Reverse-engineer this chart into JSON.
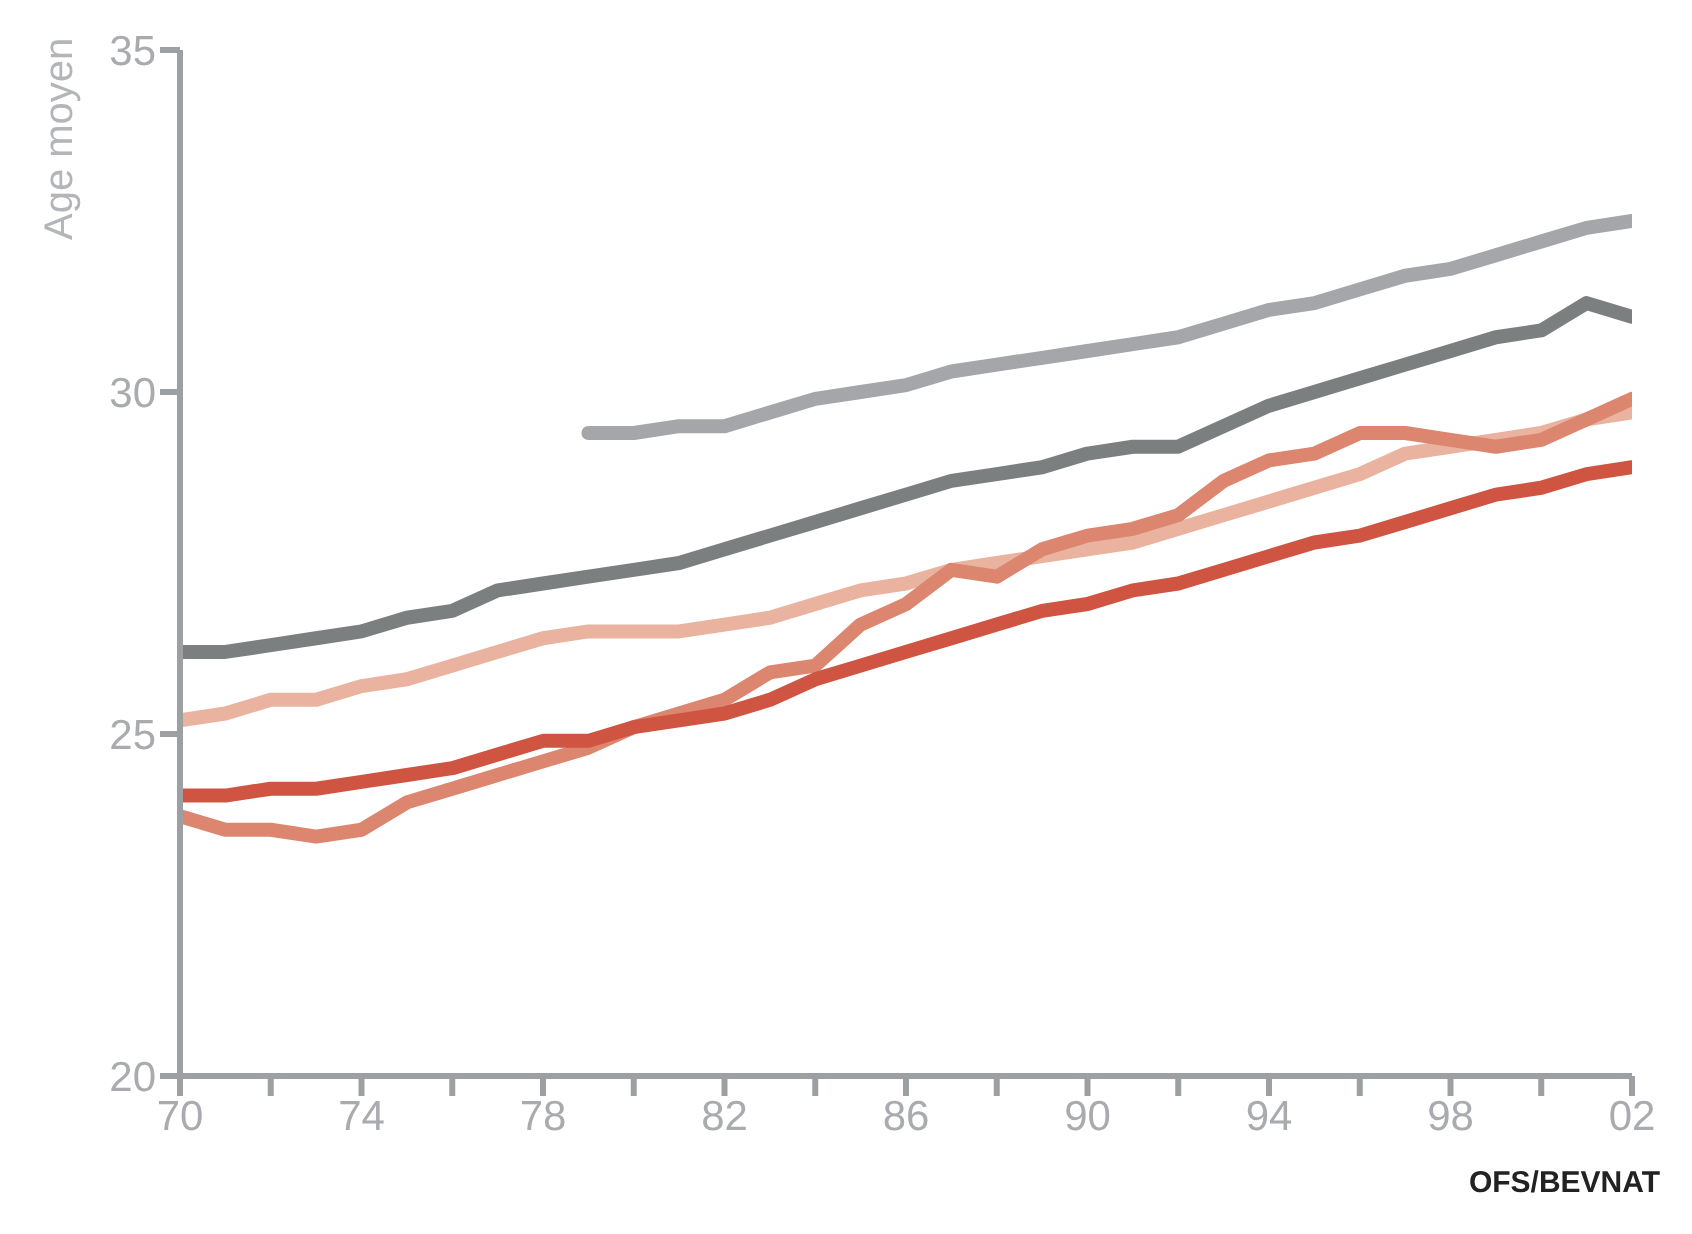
{
  "chart_data": {
    "type": "line",
    "ylabel": "Age moyen",
    "annotations": [
      "OFS/BEVNAT"
    ],
    "x": [
      1970,
      1971,
      1972,
      1973,
      1974,
      1975,
      1976,
      1977,
      1978,
      1979,
      1980,
      1981,
      1982,
      1983,
      1984,
      1985,
      1986,
      1987,
      1988,
      1989,
      1990,
      1991,
      1992,
      1993,
      1994,
      1995,
      1996,
      1997,
      1998,
      1999,
      2000,
      2001,
      2002
    ],
    "series": [
      {
        "color": "#a5a6aa",
        "values": [
          null,
          null,
          null,
          null,
          null,
          null,
          null,
          null,
          null,
          29.4,
          29.4,
          29.5,
          29.5,
          29.7,
          29.9,
          30.0,
          30.1,
          30.3,
          30.4,
          30.5,
          30.6,
          30.7,
          30.8,
          31.0,
          31.2,
          31.3,
          31.5,
          31.7,
          31.8,
          32.0,
          32.2,
          32.4,
          32.5
        ]
      },
      {
        "color": "#7b7f80",
        "values": [
          26.2,
          26.2,
          26.3,
          26.4,
          26.5,
          26.7,
          26.8,
          27.1,
          27.2,
          27.3,
          27.4,
          27.5,
          27.7,
          27.9,
          28.1,
          28.3,
          28.5,
          28.7,
          28.8,
          28.9,
          29.1,
          29.2,
          29.2,
          29.5,
          29.8,
          30.0,
          30.2,
          30.4,
          30.6,
          30.8,
          30.9,
          31.3,
          31.1
        ]
      },
      {
        "color": "#eab3a0",
        "values": [
          25.2,
          25.3,
          25.5,
          25.5,
          25.7,
          25.8,
          26.0,
          26.2,
          26.4,
          26.5,
          26.5,
          26.5,
          26.6,
          26.7,
          26.9,
          27.1,
          27.2,
          27.4,
          27.5,
          27.6,
          27.7,
          27.8,
          28.0,
          28.2,
          28.4,
          28.6,
          28.8,
          29.1,
          29.2,
          29.3,
          29.4,
          29.6,
          29.7
        ]
      },
      {
        "color": "#dc8670",
        "values": [
          23.8,
          23.6,
          23.6,
          23.5,
          23.6,
          24.0,
          24.2,
          24.4,
          24.6,
          24.8,
          25.1,
          25.3,
          25.5,
          25.9,
          26.0,
          26.6,
          26.9,
          27.4,
          27.3,
          27.7,
          27.9,
          28.0,
          28.2,
          28.7,
          29.0,
          29.1,
          29.4,
          29.4,
          29.3,
          29.2,
          29.3,
          29.6,
          29.9
        ]
      },
      {
        "color": "#cf5442",
        "values": [
          24.1,
          24.1,
          24.2,
          24.2,
          24.3,
          24.4,
          24.5,
          24.7,
          24.9,
          24.9,
          25.1,
          25.2,
          25.3,
          25.5,
          25.8,
          26.0,
          26.2,
          26.4,
          26.6,
          26.8,
          26.9,
          27.1,
          27.2,
          27.4,
          27.6,
          27.8,
          27.9,
          28.1,
          28.3,
          28.5,
          28.6,
          28.8,
          28.9
        ]
      }
    ],
    "xlim": [
      1970,
      2002
    ],
    "xticks": [
      {
        "value": 1970,
        "label": "70"
      },
      {
        "value": 1972,
        "label": null
      },
      {
        "value": 1974,
        "label": "74"
      },
      {
        "value": 1976,
        "label": null
      },
      {
        "value": 1978,
        "label": "78"
      },
      {
        "value": 1980,
        "label": null
      },
      {
        "value": 1982,
        "label": "82"
      },
      {
        "value": 1984,
        "label": null
      },
      {
        "value": 1986,
        "label": "86"
      },
      {
        "value": 1988,
        "label": null
      },
      {
        "value": 1990,
        "label": "90"
      },
      {
        "value": 1992,
        "label": null
      },
      {
        "value": 1994,
        "label": "94"
      },
      {
        "value": 1996,
        "label": null
      },
      {
        "value": 1998,
        "label": "98"
      },
      {
        "value": 2000,
        "label": null
      },
      {
        "value": 2002,
        "label": "02"
      }
    ],
    "ylim": [
      20,
      35
    ],
    "yticks": [
      20,
      25,
      30,
      35
    ],
    "grid": false,
    "legend": false,
    "marker": "none",
    "line_style": "solid"
  }
}
